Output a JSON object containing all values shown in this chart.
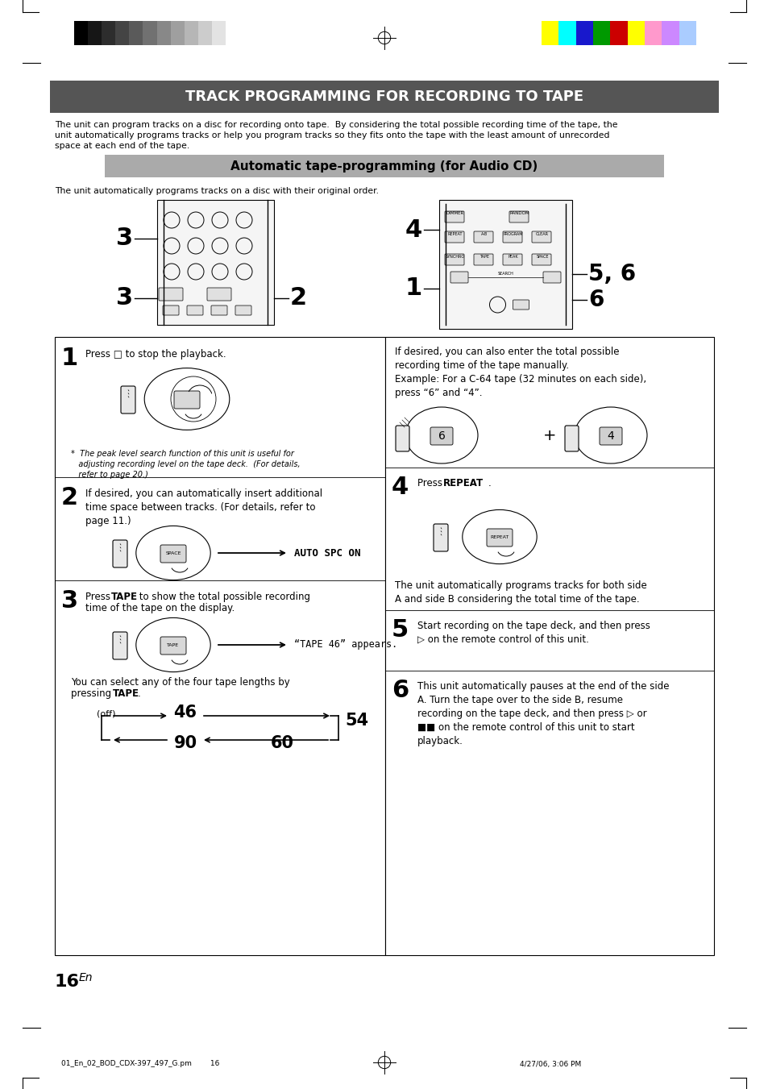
{
  "title_main": "TRACK PROGRAMMING FOR RECORDING TO TAPE",
  "title_main_bg": "#555555",
  "title_main_color": "#ffffff",
  "subtitle": "Automatic tape-programming (for Audio CD)",
  "subtitle_bg": "#aaaaaa",
  "subtitle_color": "#000000",
  "intro_text1": "The unit can program tracks on a disc for recording onto tape.  By considering the total possible recording time of the tape, the",
  "intro_text2": "unit automatically programs tracks or help you program tracks so they fits onto the tape with the least amount of unrecorded",
  "intro_text3": "space at each end of the tape.",
  "auto_intro": "The unit automatically programs tracks on a disc with their original order.",
  "step1_note": "*  The peak level search function of this unit is useful for\n   adjusting recording level on the tape deck.  (For details,\n   refer to page 20.)",
  "step2_text": "If desired, you can automatically insert additional\ntime space between tracks. (For details, refer to\npage 11.)",
  "step3_text1": "Press ",
  "step3_text2": "TAPE",
  "step3_text3": " to show the total possible recording\ntime of the tape on the display.",
  "step3_note": "You can select any of the four tape lengths by\npressing ",
  "right_intro": "If desired, you can also enter the total possible\nrecording time of the tape manually.\nExample: For a C-64 tape (32 minutes on each side),\npress “6” and “4”.",
  "step4_note": "The unit automatically programs tracks for both side\nA and side B considering the total time of the tape.",
  "step5_text": "Start recording on the tape deck, and then press\n▷ on the remote control of this unit.",
  "step6_text": "This unit automatically pauses at the end of the side\nA. Turn the tape over to the side B, resume\nrecording on the tape deck, and then press ▷ or\n■■ on the remote control of this unit to start\nplayback.",
  "footer_left": "01_En_02_BOD_CDX-397_497_G.pm        16",
  "footer_right": "4/27/06, 3:06 PM",
  "bw_colors": [
    "#000000",
    "#161616",
    "#2d2d2d",
    "#444444",
    "#5a5a5a",
    "#717171",
    "#888888",
    "#9f9f9f",
    "#b6b6b6",
    "#cccccc",
    "#e3e3e3"
  ],
  "color_colors": [
    "#ffff00",
    "#00ffff",
    "#1818cc",
    "#009900",
    "#cc0000",
    "#ffff00",
    "#ff99cc",
    "#cc88ff",
    "#aaccff"
  ],
  "bg_color": "#ffffff"
}
